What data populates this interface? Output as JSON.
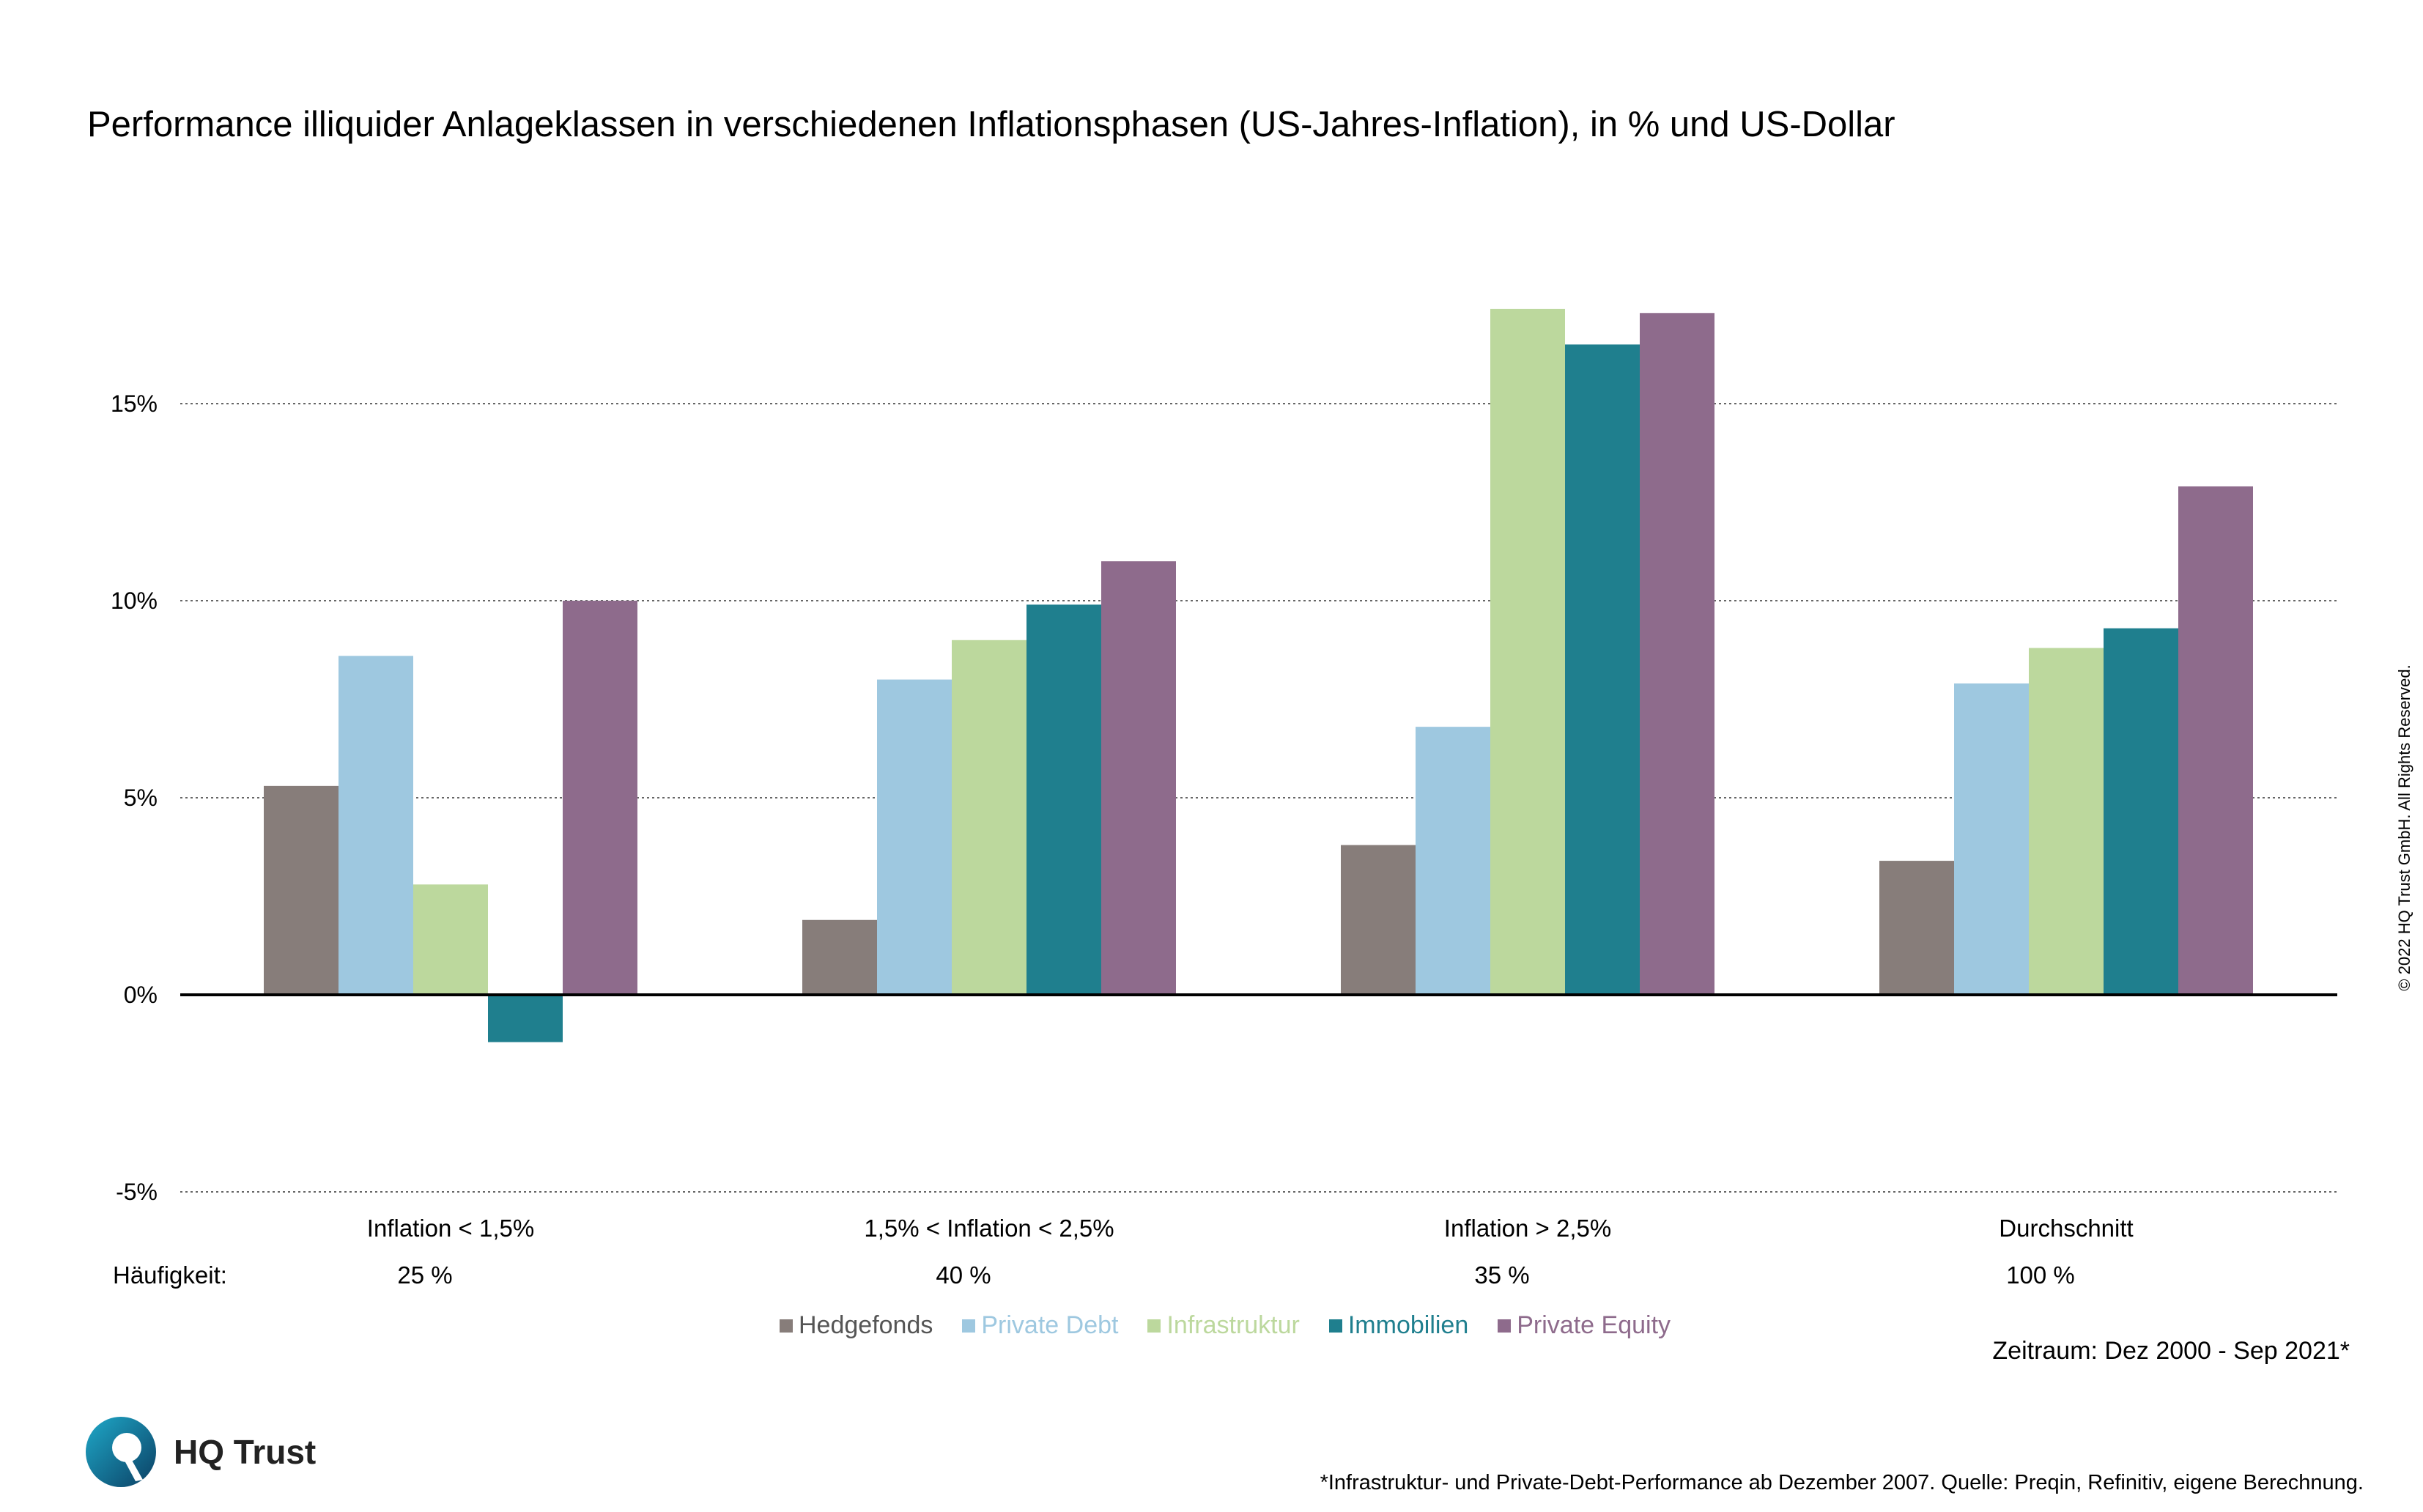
{
  "title": "Performance illiquider Anlageklassen in verschiedenen Inflationsphasen (US-Jahres-Inflation), in % und US-Dollar",
  "frequency_label": "Häufigkeit:",
  "frequencies": [
    "25 %",
    "40 %",
    "35 %",
    "100 %"
  ],
  "period": "Zeitraum: Dez 2000 - Sep 2021*",
  "footnote": "*Infrastruktur- und Private-Debt-Performance ab Dezember 2007. Quelle: Preqin, Refinitiv, eigene Berechnung.",
  "copyright": "© 2022 HQ Trust GmbH. All Rights Reserved.",
  "logo_text": "HQ Trust",
  "chart_data": {
    "type": "bar",
    "title": "Performance illiquider Anlageklassen in verschiedenen Inflationsphasen (US-Jahres-Inflation), in % und US-Dollar",
    "categories": [
      "Inflation < 1,5%",
      "1,5% < Inflation < 2,5%",
      "Inflation > 2,5%",
      "Durchschnitt"
    ],
    "ylim": [
      -5,
      20
    ],
    "yticks": [
      -5,
      0,
      5,
      10,
      15
    ],
    "ytick_labels": [
      "-5%",
      "0%",
      "5%",
      "10%",
      "15%"
    ],
    "grid": "dotted horizontal",
    "xlabel": "",
    "ylabel": "",
    "series": [
      {
        "name": "Hedgefonds",
        "color": "#877d7a",
        "values": [
          5.3,
          1.9,
          3.8,
          3.4
        ]
      },
      {
        "name": "Private Debt",
        "color": "#9ec8e0",
        "values": [
          8.6,
          8.0,
          6.8,
          7.9
        ]
      },
      {
        "name": "Infrastruktur",
        "color": "#bcd89d",
        "values": [
          2.8,
          9.0,
          17.4,
          8.8
        ]
      },
      {
        "name": "Immobilien",
        "color": "#1f7f8e",
        "values": [
          -1.2,
          9.9,
          16.5,
          9.3
        ]
      },
      {
        "name": "Private Equity",
        "color": "#8e6b8c",
        "values": [
          10.0,
          11.0,
          17.3,
          12.9
        ]
      }
    ]
  }
}
